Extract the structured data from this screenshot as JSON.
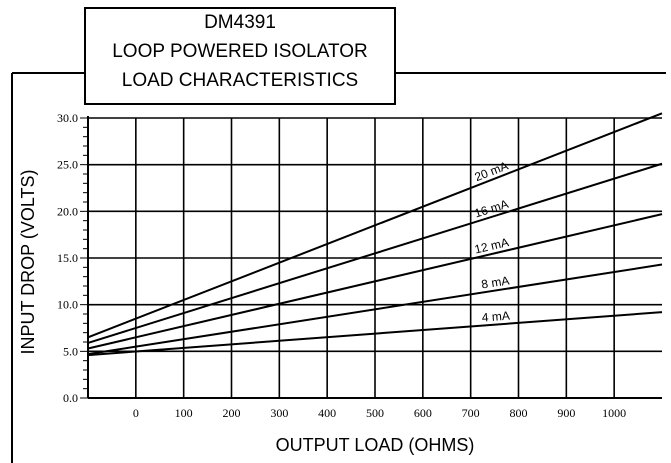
{
  "chart_data": {
    "type": "line",
    "title_lines": [
      "DM4391",
      "LOOP POWERED ISOLATOR",
      "LOAD CHARACTERISTICS"
    ],
    "xlabel": "OUTPUT LOAD (OHMS)",
    "ylabel": "INPUT DROP (VOLTS)",
    "xlim": [
      -100,
      1100
    ],
    "ylim": [
      0,
      30
    ],
    "x_ticks": [
      0,
      100,
      200,
      300,
      400,
      500,
      600,
      700,
      800,
      900,
      1000
    ],
    "y_ticks": [
      {
        "value": 0,
        "label": "0.0"
      },
      {
        "value": 5,
        "label": "5.0"
      },
      {
        "value": 10,
        "label": "10.0"
      },
      {
        "value": 15,
        "label": "15.0"
      },
      {
        "value": 20,
        "label": "20.0"
      },
      {
        "value": 25,
        "label": "25.0"
      },
      {
        "value": 30,
        "label": "30.0"
      }
    ],
    "series": [
      {
        "name": "20 mA",
        "points": [
          [
            -100,
            6.5
          ],
          [
            1100,
            30.5
          ]
        ]
      },
      {
        "name": "16 mA",
        "points": [
          [
            -100,
            5.9
          ],
          [
            1100,
            25.1
          ]
        ]
      },
      {
        "name": "12 mA",
        "points": [
          [
            -100,
            5.3
          ],
          [
            1100,
            19.7
          ]
        ]
      },
      {
        "name": "8 mA",
        "points": [
          [
            -100,
            4.7
          ],
          [
            1100,
            14.3
          ]
        ]
      },
      {
        "name": "4 mA",
        "points": [
          [
            -100,
            4.6
          ],
          [
            1100,
            9.2
          ]
        ]
      }
    ],
    "grid": true
  }
}
